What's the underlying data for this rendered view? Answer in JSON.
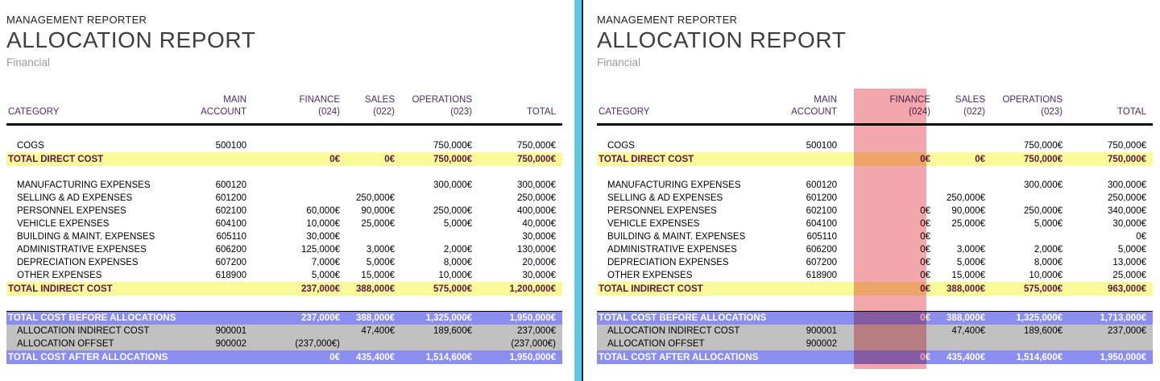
{
  "colors": {
    "yellow": "#FAFA9B",
    "blue": "#8B8DF1",
    "gray": "#C1C1C1",
    "purple": "#4F2A63",
    "maroon": "#5E1647",
    "highlight": "#F2A7AC",
    "divider": "#5FC8E8",
    "divider-line": "#141A26"
  },
  "columns": [
    {
      "key": "category",
      "line1": "",
      "line2": "CATEGORY"
    },
    {
      "key": "account",
      "line1": "MAIN",
      "line2": "ACCOUNT"
    },
    {
      "key": "finance",
      "line1": "FINANCE",
      "line2": "(024)"
    },
    {
      "key": "sales",
      "line1": "SALES",
      "line2": "(022)"
    },
    {
      "key": "operations",
      "line1": "OPERATIONS",
      "line2": "(023)"
    },
    {
      "key": "total",
      "line1": "",
      "line2": "TOTAL"
    }
  ],
  "panels": [
    {
      "eyebrow": "MANAGEMENT REPORTER",
      "title": "ALLOCATION REPORT",
      "subtitle": "Financial",
      "finance_highlight": false,
      "rows": [
        {
          "type": "data",
          "indent": true,
          "label": "COGS",
          "account": "500100",
          "finance": "",
          "sales": "",
          "operations": "750,000€",
          "total": "750,000€"
        },
        {
          "type": "total-yellow",
          "indent": false,
          "label": "TOTAL DIRECT COST",
          "account": "",
          "finance": "0€",
          "sales": "0€",
          "operations": "750,000€",
          "total": "750,000€"
        },
        {
          "type": "spacer",
          "h": 16
        },
        {
          "type": "data",
          "indent": true,
          "label": "MANUFACTURING EXPENSES",
          "account": "600120",
          "finance": "",
          "sales": "",
          "operations": "300,000€",
          "total": "300,000€"
        },
        {
          "type": "data",
          "indent": true,
          "label": "SELLING & AD EXPENSES",
          "account": "601200",
          "finance": "",
          "sales": "250,000€",
          "operations": "",
          "total": "250,000€"
        },
        {
          "type": "data",
          "indent": true,
          "label": "PERSONNEL EXPENSES",
          "account": "602100",
          "finance": "60,000€",
          "sales": "90,000€",
          "operations": "250,000€",
          "total": "400,000€"
        },
        {
          "type": "data",
          "indent": true,
          "label": "VEHICLE EXPENSES",
          "account": "604100",
          "finance": "10,000€",
          "sales": "25,000€",
          "operations": "5,000€",
          "total": "40,000€"
        },
        {
          "type": "data",
          "indent": true,
          "label": "BUILDING & MAINT. EXPENSES",
          "account": "605110",
          "finance": "30,000€",
          "sales": "",
          "operations": "",
          "total": "30,000€"
        },
        {
          "type": "data",
          "indent": true,
          "label": "ADMINISTRATIVE EXPENSES",
          "account": "606200",
          "finance": "125,000€",
          "sales": "3,000€",
          "operations": "2,000€",
          "total": "130,000€"
        },
        {
          "type": "data",
          "indent": true,
          "label": "DEPRECIATION EXPENSES",
          "account": "607200",
          "finance": "7,000€",
          "sales": "5,000€",
          "operations": "8,000€",
          "total": "20,000€"
        },
        {
          "type": "data",
          "indent": true,
          "label": "OTHER EXPENSES",
          "account": "618900",
          "finance": "5,000€",
          "sales": "15,000€",
          "operations": "10,000€",
          "total": "30,000€"
        },
        {
          "type": "total-yellow",
          "indent": false,
          "label": "TOTAL INDIRECT COST",
          "account": "",
          "finance": "237,000€",
          "sales": "388,000€",
          "operations": "575,000€",
          "total": "1,200,000€"
        },
        {
          "type": "spacer",
          "h": 19
        },
        {
          "type": "band-blue",
          "indent": false,
          "label": "TOTAL COST BEFORE ALLOCATIONS",
          "account": "",
          "finance": "237,000€",
          "sales": "388,000€",
          "operations": "1,325,000€",
          "total": "1,950,000€"
        },
        {
          "type": "band-gray",
          "indent": true,
          "label": "ALLOCATION INDIRECT COST",
          "account": "900001",
          "finance": "",
          "sales": "47,400€",
          "operations": "189,600€",
          "total": "237,000€"
        },
        {
          "type": "band-gray",
          "indent": true,
          "label": "ALLOCATION OFFSET",
          "account": "900002",
          "finance": "(237,000€)",
          "sales": "",
          "operations": "",
          "total": "(237,000€)"
        },
        {
          "type": "band-blue",
          "indent": false,
          "label": "TOTAL COST AFTER ALLOCATIONS",
          "account": "",
          "finance": "0€",
          "sales": "435,400€",
          "operations": "1,514,600€",
          "total": "1,950,000€"
        }
      ]
    },
    {
      "eyebrow": "MANAGEMENT REPORTER",
      "title": "ALLOCATION REPORT",
      "subtitle": "Financial",
      "finance_highlight": true,
      "highlighted_column": "FINANCE (024)",
      "rows": [
        {
          "type": "data",
          "indent": true,
          "label": "COGS",
          "account": "500100",
          "finance": "",
          "sales": "",
          "operations": "750,000€",
          "total": "750,000€"
        },
        {
          "type": "total-yellow",
          "indent": false,
          "label": "TOTAL DIRECT COST",
          "account": "",
          "finance": "0€",
          "sales": "0€",
          "operations": "750,000€",
          "total": "750,000€"
        },
        {
          "type": "spacer",
          "h": 16
        },
        {
          "type": "data",
          "indent": true,
          "label": "MANUFACTURING EXPENSES",
          "account": "600120",
          "finance": "",
          "sales": "",
          "operations": "300,000€",
          "total": "300,000€"
        },
        {
          "type": "data",
          "indent": true,
          "label": "SELLING & AD EXPENSES",
          "account": "601200",
          "finance": "",
          "sales": "250,000€",
          "operations": "",
          "total": "250,000€"
        },
        {
          "type": "data",
          "indent": true,
          "label": "PERSONNEL EXPENSES",
          "account": "602100",
          "finance": "0€",
          "sales": "90,000€",
          "operations": "250,000€",
          "total": "340,000€"
        },
        {
          "type": "data",
          "indent": true,
          "label": "VEHICLE EXPENSES",
          "account": "604100",
          "finance": "0€",
          "sales": "25,000€",
          "operations": "5,000€",
          "total": "30,000€"
        },
        {
          "type": "data",
          "indent": true,
          "label": "BUILDING & MAINT. EXPENSES",
          "account": "605110",
          "finance": "0€",
          "sales": "",
          "operations": "",
          "total": "0€"
        },
        {
          "type": "data",
          "indent": true,
          "label": "ADMINISTRATIVE EXPENSES",
          "account": "606200",
          "finance": "0€",
          "sales": "3,000€",
          "operations": "2,000€",
          "total": "5,000€"
        },
        {
          "type": "data",
          "indent": true,
          "label": "DEPRECIATION EXPENSES",
          "account": "607200",
          "finance": "0€",
          "sales": "5,000€",
          "operations": "8,000€",
          "total": "13,000€"
        },
        {
          "type": "data",
          "indent": true,
          "label": "OTHER EXPENSES",
          "account": "618900",
          "finance": "0€",
          "sales": "15,000€",
          "operations": "10,000€",
          "total": "25,000€"
        },
        {
          "type": "total-yellow",
          "indent": false,
          "label": "TOTAL INDIRECT COST",
          "account": "",
          "finance": "0€",
          "sales": "388,000€",
          "operations": "575,000€",
          "total": "963,000€"
        },
        {
          "type": "spacer",
          "h": 19
        },
        {
          "type": "band-blue",
          "indent": false,
          "label": "TOTAL COST BEFORE ALLOCATIONS",
          "account": "",
          "finance": "0€",
          "sales": "388,000€",
          "operations": "1,325,000€",
          "total": "1,713,000€"
        },
        {
          "type": "band-gray",
          "indent": true,
          "label": "ALLOCATION INDIRECT COST",
          "account": "900001",
          "finance": "",
          "sales": "47,400€",
          "operations": "189,600€",
          "total": "237,000€"
        },
        {
          "type": "band-gray",
          "indent": true,
          "label": "ALLOCATION OFFSET",
          "account": "900002",
          "finance": "",
          "sales": "",
          "operations": "",
          "total": ""
        },
        {
          "type": "band-blue",
          "indent": false,
          "label": "TOTAL COST AFTER ALLOCATIONS",
          "account": "",
          "finance": "0€",
          "sales": "435,400€",
          "operations": "1,514,600€",
          "total": "1,950,000€"
        }
      ]
    }
  ]
}
